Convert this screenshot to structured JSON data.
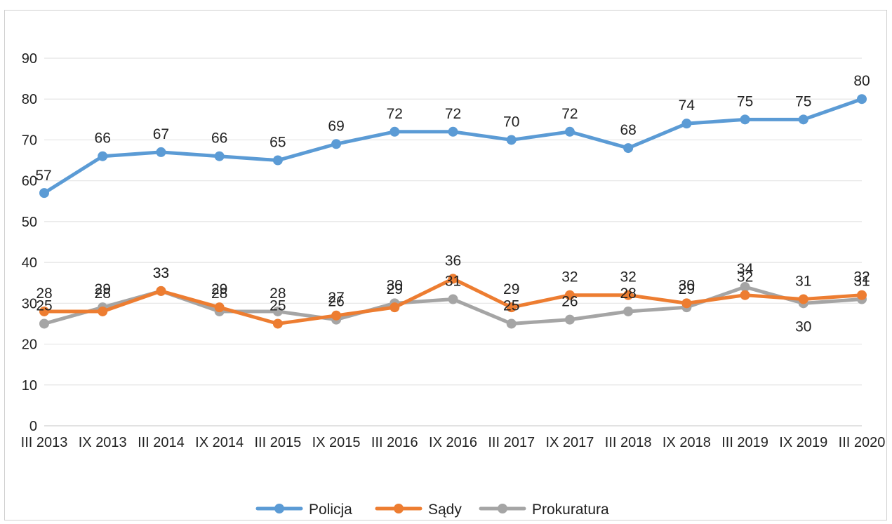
{
  "chart_data": {
    "type": "line",
    "title": "",
    "xlabel": "",
    "ylabel": "",
    "ylim": [
      0,
      90
    ],
    "yticks": [
      0,
      10,
      20,
      30,
      40,
      50,
      60,
      70,
      80,
      90
    ],
    "grid": true,
    "legend_position": "bottom",
    "categories": [
      "III 2013",
      "IX 2013",
      "III 2014",
      "IX 2014",
      "III 2015",
      "IX 2015",
      "III 2016",
      "IX 2016",
      "III 2017",
      "IX 2017",
      "III 2018",
      "IX 2018",
      "III 2019",
      "IX 2019",
      "III 2020"
    ],
    "series": [
      {
        "name": "Policja",
        "color": "#5b9bd5",
        "values": [
          57,
          66,
          67,
          66,
          65,
          69,
          72,
          72,
          70,
          72,
          68,
          74,
          75,
          75,
          80
        ]
      },
      {
        "name": "Sądy",
        "color": "#ed7d31",
        "values": [
          28,
          28,
          33,
          29,
          25,
          27,
          29,
          36,
          29,
          32,
          32,
          30,
          32,
          31,
          32
        ]
      },
      {
        "name": "Prokuratura",
        "color": "#a5a5a5",
        "values": [
          25,
          29,
          33,
          28,
          28,
          26,
          30,
          31,
          25,
          26,
          28,
          29,
          34,
          30,
          31
        ]
      }
    ]
  }
}
